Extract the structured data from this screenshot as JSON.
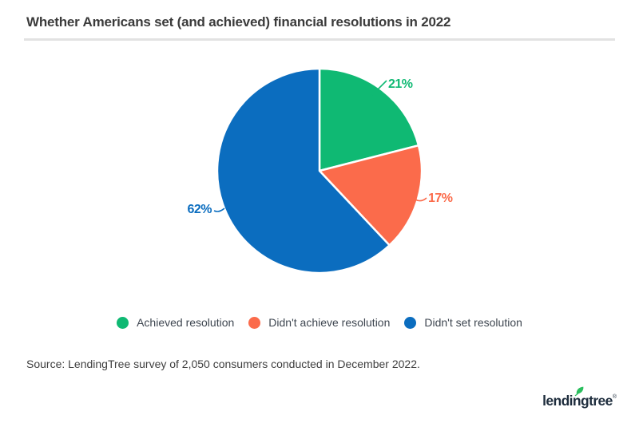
{
  "header": {
    "title": "Whether Americans set (and achieved) financial resolutions in 2022"
  },
  "chart_data": {
    "type": "pie",
    "title": "Whether Americans set (and achieved) financial resolutions in 2022",
    "categories": [
      "Achieved resolution",
      "Didn't achieve resolution",
      "Didn't set resolution"
    ],
    "values": [
      21,
      17,
      62
    ],
    "labels": [
      "21%",
      "17%",
      "62%"
    ],
    "colors": [
      "#0fb973",
      "#fb6b4b",
      "#0b6dbf"
    ],
    "start_angle_deg": 0,
    "direction": "clockwise",
    "legend_position": "bottom",
    "source": "Source: LendingTree survey of 2,050 consumers conducted in December 2022."
  },
  "legend": {
    "items": [
      {
        "label": "Achieved resolution",
        "color": "#0fb973"
      },
      {
        "label": "Didn't achieve resolution",
        "color": "#fb6b4b"
      },
      {
        "label": "Didn't set resolution",
        "color": "#0b6dbf"
      }
    ]
  },
  "footer": {
    "source": "Source: LendingTree survey of 2,050 consumers conducted in December 2022.",
    "logo_text": "lendingtree",
    "logo_reg": "®"
  },
  "colors": {
    "green": "#0fb973",
    "orange": "#fb6b4b",
    "blue": "#0b6dbf",
    "title_text": "#3b3b3b",
    "divider": "#e2e2e2",
    "logo_navy": "#1e2d3d",
    "leaf_green": "#2bbf5e"
  }
}
